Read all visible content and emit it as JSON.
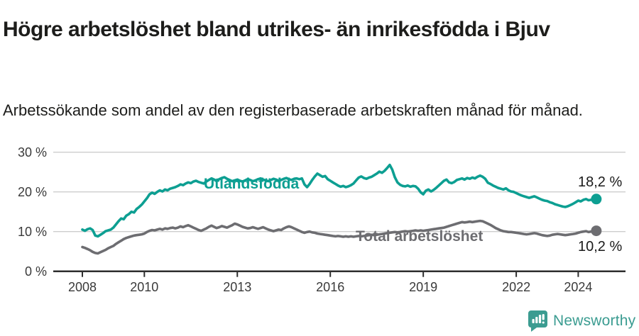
{
  "header": {
    "title": "Högre arbetslöshet bland utrikes- än inrikesfödda i Bjuv",
    "subtitle": "Arbetssökande som andel av den registerbaserade arbetskraften månad för månad."
  },
  "chart_data": {
    "type": "line",
    "x_start_year": 2008,
    "x_step_months": 1,
    "ylim": [
      0,
      30
    ],
    "grid": true,
    "legend": "inline-labels",
    "yticks": [
      {
        "value": 30,
        "label": "30 %"
      },
      {
        "value": 20,
        "label": "20 %"
      },
      {
        "value": 10,
        "label": "10 %"
      },
      {
        "value": 0,
        "label": "0 %"
      }
    ],
    "xticks": [
      {
        "year": 2008,
        "label": "2008"
      },
      {
        "year": 2010,
        "label": "2010"
      },
      {
        "year": 2013,
        "label": "2013"
      },
      {
        "year": 2016,
        "label": "2016"
      },
      {
        "year": 2019,
        "label": "2019"
      },
      {
        "year": 2022,
        "label": "2022"
      },
      {
        "year": 2024,
        "label": "2024"
      }
    ],
    "series": [
      {
        "name": "Utlandsfödda",
        "color": "#0d9f92",
        "end_label": "18,2 %",
        "end_value": 18.2,
        "values": [
          10.5,
          10.2,
          10.6,
          10.8,
          10.4,
          9.0,
          8.8,
          9.2,
          9.6,
          10.1,
          10.3,
          10.5,
          11.0,
          11.8,
          12.6,
          13.3,
          13.1,
          14.0,
          14.4,
          15.0,
          14.8,
          15.7,
          16.2,
          16.8,
          17.6,
          18.4,
          19.4,
          19.8,
          19.5,
          20.0,
          20.4,
          20.1,
          20.6,
          20.4,
          20.8,
          21.0,
          21.2,
          21.5,
          21.9,
          21.7,
          22.1,
          22.4,
          22.2,
          22.6,
          22.8,
          22.5,
          22.3,
          22.1,
          22.6,
          23.0,
          23.4,
          23.1,
          22.8,
          23.2,
          23.5,
          23.7,
          23.3,
          23.0,
          22.7,
          22.9,
          23.1,
          22.8,
          22.6,
          22.9,
          23.2,
          23.0,
          22.7,
          22.9,
          23.2,
          23.4,
          23.1,
          22.9,
          22.7,
          23.0,
          23.3,
          23.1,
          22.8,
          23.0,
          23.3,
          23.5,
          23.2,
          23.0,
          23.3,
          23.4,
          23.2,
          23.4,
          21.9,
          21.2,
          22.0,
          23.0,
          23.9,
          24.6,
          24.2,
          23.8,
          24.0,
          23.2,
          22.8,
          22.4,
          22.0,
          21.6,
          21.3,
          21.5,
          21.2,
          21.4,
          21.7,
          22.1,
          22.9,
          23.6,
          23.9,
          23.5,
          23.3,
          23.6,
          23.8,
          24.2,
          24.6,
          25.1,
          24.8,
          25.3,
          26.0,
          26.8,
          25.6,
          23.7,
          22.4,
          21.8,
          21.5,
          21.4,
          21.6,
          21.3,
          21.5,
          21.4,
          20.8,
          19.9,
          19.4,
          20.3,
          20.6,
          20.1,
          20.5,
          21.0,
          21.6,
          22.2,
          22.8,
          23.1,
          22.4,
          22.2,
          22.5,
          23.0,
          23.2,
          23.4,
          23.1,
          23.5,
          23.3,
          23.6,
          23.4,
          23.8,
          24.1,
          23.8,
          23.3,
          22.3,
          22.0,
          21.6,
          21.3,
          21.0,
          20.8,
          20.6,
          20.9,
          20.4,
          20.1,
          20.0,
          19.7,
          19.4,
          19.1,
          18.9,
          18.7,
          18.5,
          18.7,
          18.9,
          18.6,
          18.3,
          18.0,
          17.8,
          17.7,
          17.4,
          17.2,
          16.9,
          16.7,
          16.5,
          16.3,
          16.2,
          16.4,
          16.7,
          17.0,
          17.4,
          17.8,
          17.6,
          18.0,
          18.2,
          17.9,
          18.0,
          18.1,
          18.2
        ]
      },
      {
        "name": "Total arbetslöshet",
        "color": "#6d6d71",
        "end_label": "10,2 %",
        "end_value": 10.2,
        "values": [
          6.1,
          5.9,
          5.6,
          5.3,
          4.9,
          4.6,
          4.5,
          4.8,
          5.1,
          5.4,
          5.8,
          6.1,
          6.4,
          6.9,
          7.3,
          7.7,
          8.1,
          8.4,
          8.6,
          8.8,
          9.0,
          9.1,
          9.2,
          9.3,
          9.5,
          9.9,
          10.2,
          10.4,
          10.3,
          10.5,
          10.7,
          10.5,
          10.8,
          10.7,
          10.9,
          11.0,
          10.8,
          11.0,
          11.3,
          11.1,
          11.4,
          11.6,
          11.3,
          11.0,
          10.7,
          10.4,
          10.2,
          10.5,
          10.8,
          11.2,
          11.5,
          11.2,
          10.9,
          11.1,
          11.4,
          11.2,
          11.0,
          11.3,
          11.6,
          12.0,
          11.8,
          11.5,
          11.2,
          11.0,
          10.8,
          10.9,
          11.1,
          10.9,
          10.7,
          10.9,
          11.1,
          10.8,
          10.5,
          10.3,
          10.1,
          10.3,
          10.5,
          10.4,
          10.8,
          11.1,
          11.3,
          11.1,
          10.8,
          10.5,
          10.2,
          9.9,
          9.7,
          9.9,
          10.0,
          9.8,
          9.7,
          9.5,
          9.4,
          9.3,
          9.2,
          9.1,
          9.0,
          8.9,
          8.8,
          8.9,
          8.8,
          8.7,
          8.8,
          8.7,
          8.8,
          8.7,
          8.8,
          8.9,
          8.8,
          8.9,
          9.0,
          9.1,
          9.2,
          9.1,
          9.2,
          9.3,
          9.4,
          9.5,
          9.6,
          9.7,
          9.8,
          9.9,
          9.8,
          9.9,
          10.0,
          10.1,
          10.0,
          10.1,
          10.2,
          10.3,
          10.2,
          10.3,
          10.2,
          10.3,
          10.4,
          10.5,
          10.6,
          10.7,
          10.8,
          10.9,
          11.0,
          11.2,
          11.4,
          11.6,
          11.8,
          12.0,
          12.2,
          12.4,
          12.3,
          12.4,
          12.5,
          12.4,
          12.5,
          12.6,
          12.7,
          12.6,
          12.3,
          12.0,
          11.7,
          11.3,
          10.9,
          10.6,
          10.3,
          10.1,
          10.0,
          9.9,
          9.9,
          9.8,
          9.7,
          9.6,
          9.5,
          9.4,
          9.3,
          9.4,
          9.5,
          9.6,
          9.5,
          9.3,
          9.1,
          9.0,
          8.9,
          9.0,
          9.2,
          9.3,
          9.4,
          9.3,
          9.2,
          9.1,
          9.2,
          9.3,
          9.4,
          9.5,
          9.7,
          9.9,
          10.0,
          10.1,
          9.9,
          10.0,
          10.1,
          10.2
        ]
      }
    ]
  },
  "footer": {
    "brand": "Newsworthy",
    "logo_icon": "bar-chart-speech-bubble-icon"
  },
  "colors": {
    "accent_teal": "#0d9f92",
    "series_gray": "#6d6d71",
    "grid": "#cdcdcd",
    "axis": "#2e2e2e",
    "text": "#1d1d1b",
    "logo_teal": "#3b9c91"
  }
}
